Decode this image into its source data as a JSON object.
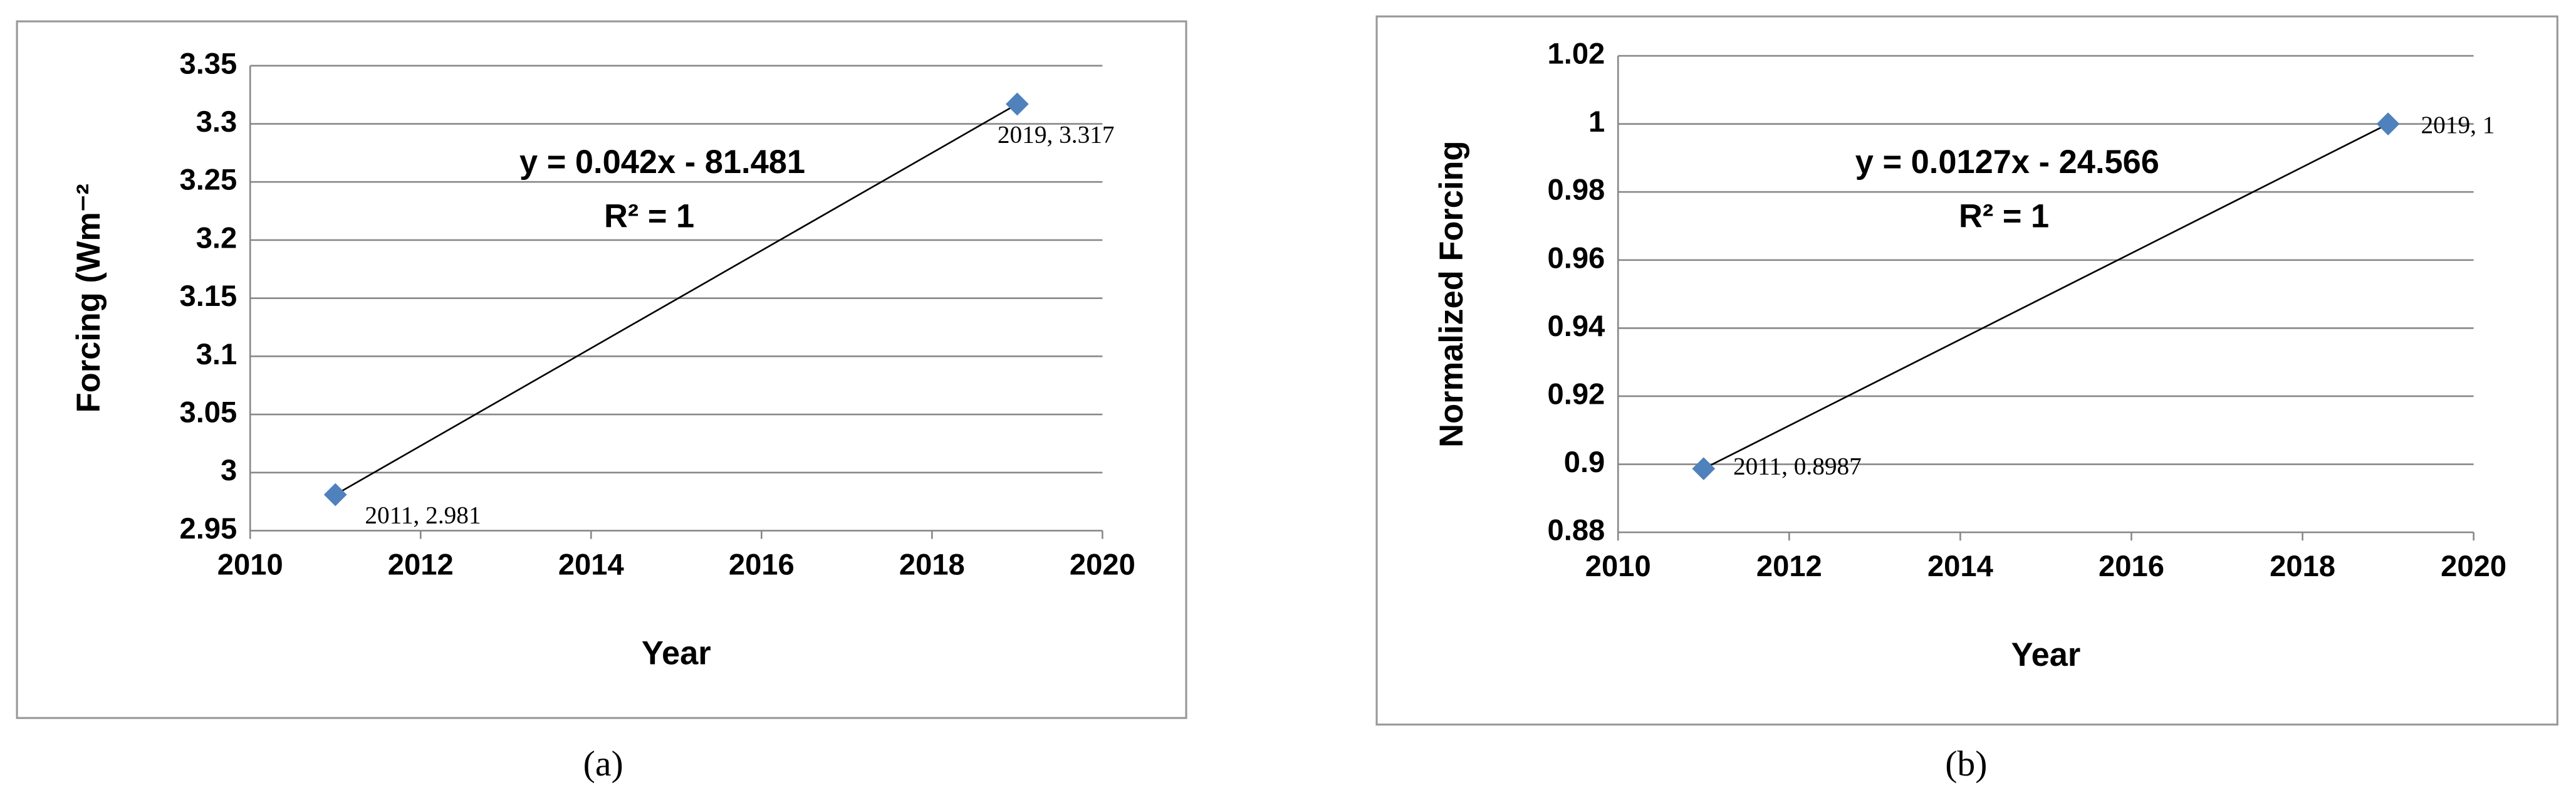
{
  "chart_data": [
    {
      "type": "scatter",
      "x_label": "Year",
      "y_label": "Forcing (Wm⁻²",
      "x": [
        2011,
        2019
      ],
      "values": [
        2.981,
        3.317
      ],
      "value_labels": [
        "2011, 2.981",
        "2019, 3.317"
      ],
      "color": "#4f81bd",
      "xlim": [
        2010,
        2020
      ],
      "xticks": [
        2010,
        2012,
        2014,
        2016,
        2018,
        2020
      ],
      "ylim": [
        2.95,
        3.35
      ],
      "yticks": [
        2.95,
        3,
        3.05,
        3.1,
        3.15,
        3.2,
        3.25,
        3.3,
        3.35
      ],
      "grid": true,
      "equation": "y = 0.042x - 81.481",
      "r_squared": "R² = 1",
      "caption": "(a)"
    },
    {
      "type": "scatter",
      "x_label": "Year",
      "y_label": "Normalized  Forcing",
      "x": [
        2011,
        2019
      ],
      "values": [
        0.8987,
        1
      ],
      "value_labels": [
        "2011, 0.8987",
        "2019, 1"
      ],
      "color": "#4f81bd",
      "xlim": [
        2010,
        2020
      ],
      "xticks": [
        2010,
        2012,
        2014,
        2016,
        2018,
        2020
      ],
      "ylim": [
        0.88,
        1.02
      ],
      "yticks": [
        0.88,
        0.9,
        0.92,
        0.94,
        0.96,
        0.98,
        1,
        1.02
      ],
      "grid": true,
      "equation": "y = 0.0127x - 24.566",
      "r_squared": "R² = 1",
      "caption": "(b)"
    }
  ]
}
